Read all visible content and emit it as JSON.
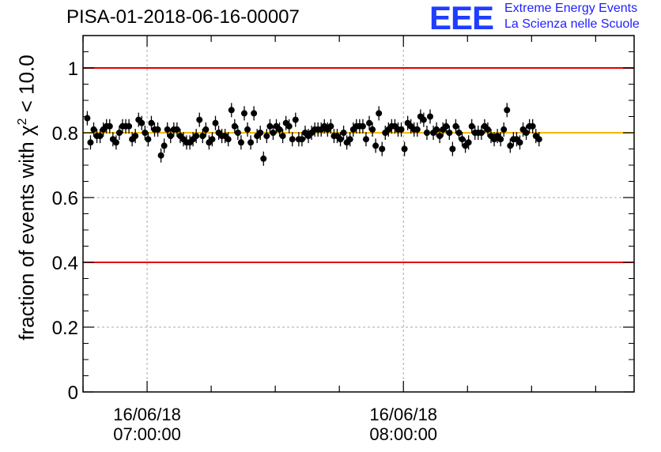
{
  "chart_data": {
    "type": "scatter",
    "title": "PISA-01-2018-06-16-00007",
    "ylabel_prefix": "fraction of events with ",
    "ylabel_symbol": "χ",
    "ylabel_exp": "2",
    "ylabel_suffix": " < 10.0",
    "ylim": [
      0,
      1.1
    ],
    "y_ticks": [
      0,
      0.2,
      0.4,
      0.6,
      0.8,
      1
    ],
    "y_tick_labels": [
      "0",
      "0.2",
      "0.4",
      "0.6",
      "0.8",
      "1"
    ],
    "xlim_minutes": [
      "06:45",
      "08:54"
    ],
    "x_ticks": [
      {
        "time": "07:00",
        "date_label": "16/06/18",
        "time_label": "07:00:00"
      },
      {
        "time": "08:00",
        "date_label": "16/06/18",
        "time_label": "08:00:00"
      }
    ],
    "grid": true,
    "reference_lines": [
      {
        "y": 1.0,
        "color": "#e00000"
      },
      {
        "y": 0.4,
        "color": "#e00000"
      },
      {
        "y": 0.8,
        "color": "#f5b800"
      }
    ],
    "error": 0.022,
    "start_time": "06:46",
    "step_minutes": 0.75,
    "values": [
      0.845,
      0.77,
      0.81,
      0.79,
      0.79,
      0.81,
      0.82,
      0.82,
      0.78,
      0.77,
      0.8,
      0.82,
      0.82,
      0.82,
      0.78,
      0.79,
      0.84,
      0.83,
      0.8,
      0.78,
      0.83,
      0.81,
      0.81,
      0.73,
      0.76,
      0.81,
      0.79,
      0.81,
      0.81,
      0.79,
      0.78,
      0.77,
      0.77,
      0.78,
      0.79,
      0.84,
      0.79,
      0.81,
      0.77,
      0.78,
      0.83,
      0.8,
      0.79,
      0.79,
      0.78,
      0.87,
      0.82,
      0.8,
      0.77,
      0.86,
      0.81,
      0.77,
      0.86,
      0.79,
      0.8,
      0.72,
      0.79,
      0.82,
      0.8,
      0.82,
      0.81,
      0.79,
      0.83,
      0.82,
      0.78,
      0.84,
      0.78,
      0.78,
      0.8,
      0.79,
      0.8,
      0.81,
      0.81,
      0.81,
      0.82,
      0.81,
      0.82,
      0.79,
      0.79,
      0.78,
      0.8,
      0.77,
      0.78,
      0.81,
      0.82,
      0.82,
      0.82,
      0.78,
      0.83,
      0.81,
      0.76,
      0.86,
      0.75,
      0.8,
      0.81,
      0.82,
      0.82,
      0.81,
      0.81,
      0.75,
      0.83,
      0.82,
      0.81,
      0.81,
      0.85,
      0.84,
      0.8,
      0.85,
      0.8,
      0.81,
      0.79,
      0.81,
      0.82,
      0.8,
      0.75,
      0.82,
      0.8,
      0.78,
      0.76,
      0.77,
      0.82,
      0.8,
      0.8,
      0.8,
      0.82,
      0.81,
      0.79,
      0.78,
      0.79,
      0.78,
      0.81,
      0.87,
      0.76,
      0.78,
      0.78,
      0.77,
      0.81,
      0.8,
      0.82,
      0.82,
      0.79,
      0.78
    ]
  },
  "logo": {
    "mark": "EEE",
    "line1": "Extreme Energy Events",
    "line2": "La Scienza nelle Scuole",
    "color": "#1f1fff"
  }
}
